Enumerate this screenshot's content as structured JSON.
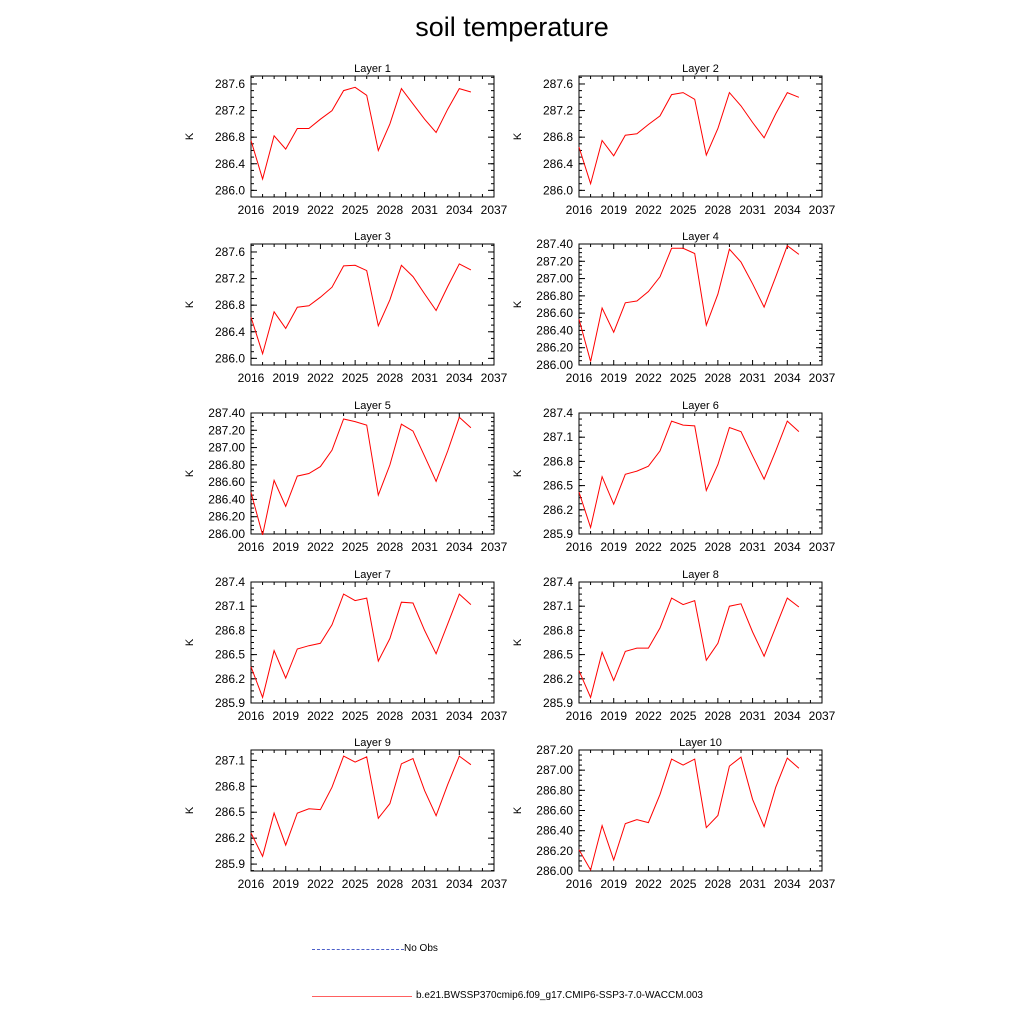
{
  "title": "soil temperature",
  "legend": {
    "obs_label": "No Obs",
    "obs_color": "#4b5fc9",
    "model_label": "b.e21.BWSSP370cmip6.f09_g17.CMIP6-SSP3-7.0-WACCM.003",
    "model_color": "#ff0000"
  },
  "chart_data": [
    {
      "type": "line",
      "title": "Layer 1",
      "ylabel": "K",
      "xlim": [
        2016,
        2037
      ],
      "xticks": [
        "2016",
        "2019",
        "2022",
        "2025",
        "2028",
        "2031",
        "2034",
        "2037"
      ],
      "ylim": [
        285.9,
        287.72
      ],
      "yticks": [
        "286.0",
        "286.4",
        "286.8",
        "287.2",
        "287.6"
      ],
      "ytick_values": [
        286.0,
        286.4,
        286.8,
        287.2,
        287.6
      ],
      "grid": false,
      "series": [
        {
          "color": "#ff0000",
          "x": [
            2016,
            2017,
            2018,
            2019,
            2020,
            2021,
            2022,
            2023,
            2024,
            2025,
            2026,
            2027,
            2028,
            2029,
            2030,
            2031,
            2032,
            2033,
            2034,
            2035
          ],
          "values": [
            286.75,
            286.17,
            286.82,
            286.62,
            286.93,
            286.93,
            287.07,
            287.2,
            287.5,
            287.55,
            287.43,
            286.6,
            287.0,
            287.53,
            287.3,
            287.07,
            286.87,
            287.22,
            287.53,
            287.48
          ]
        }
      ]
    },
    {
      "type": "line",
      "title": "Layer 2",
      "ylabel": "K",
      "xlim": [
        2016,
        2037
      ],
      "xticks": [
        "2016",
        "2019",
        "2022",
        "2025",
        "2028",
        "2031",
        "2034",
        "2037"
      ],
      "ylim": [
        285.9,
        287.72
      ],
      "yticks": [
        "286.0",
        "286.4",
        "286.8",
        "287.2",
        "287.6"
      ],
      "ytick_values": [
        286.0,
        286.4,
        286.8,
        287.2,
        287.6
      ],
      "grid": false,
      "series": [
        {
          "color": "#ff0000",
          "x": [
            2016,
            2017,
            2018,
            2019,
            2020,
            2021,
            2022,
            2023,
            2024,
            2025,
            2026,
            2027,
            2028,
            2029,
            2030,
            2031,
            2032,
            2033,
            2034,
            2035
          ],
          "values": [
            286.65,
            286.1,
            286.75,
            286.52,
            286.83,
            286.85,
            286.99,
            287.12,
            287.44,
            287.47,
            287.37,
            286.53,
            286.93,
            287.47,
            287.27,
            287.02,
            286.79,
            287.15,
            287.47,
            287.4
          ]
        }
      ]
    },
    {
      "type": "line",
      "title": "Layer 3",
      "ylabel": "K",
      "xlim": [
        2016,
        2037
      ],
      "xticks": [
        "2016",
        "2019",
        "2022",
        "2025",
        "2028",
        "2031",
        "2034",
        "2037"
      ],
      "ylim": [
        285.9,
        287.72
      ],
      "yticks": [
        "286.0",
        "286.4",
        "286.8",
        "287.2",
        "287.6"
      ],
      "ytick_values": [
        286.0,
        286.4,
        286.8,
        287.2,
        287.6
      ],
      "grid": false,
      "series": [
        {
          "color": "#ff0000",
          "x": [
            2016,
            2017,
            2018,
            2019,
            2020,
            2021,
            2022,
            2023,
            2024,
            2025,
            2026,
            2027,
            2028,
            2029,
            2030,
            2031,
            2032,
            2033,
            2034,
            2035
          ],
          "values": [
            286.62,
            286.07,
            286.7,
            286.45,
            286.77,
            286.79,
            286.92,
            287.07,
            287.39,
            287.4,
            287.32,
            286.49,
            286.88,
            287.4,
            287.23,
            286.97,
            286.72,
            287.08,
            287.42,
            287.33
          ]
        }
      ]
    },
    {
      "type": "line",
      "title": "Layer 4",
      "ylabel": "K",
      "xlim": [
        2016,
        2037
      ],
      "xticks": [
        "2016",
        "2019",
        "2022",
        "2025",
        "2028",
        "2031",
        "2034",
        "2037"
      ],
      "ylim": [
        286.0,
        287.4
      ],
      "yticks": [
        "286.00",
        "286.20",
        "286.40",
        "286.60",
        "286.80",
        "287.00",
        "287.20",
        "287.40"
      ],
      "ytick_values": [
        286.0,
        286.2,
        286.4,
        286.6,
        286.8,
        287.0,
        287.2,
        287.4
      ],
      "grid": false,
      "series": [
        {
          "color": "#ff0000",
          "x": [
            2016,
            2017,
            2018,
            2019,
            2020,
            2021,
            2022,
            2023,
            2024,
            2025,
            2026,
            2027,
            2028,
            2029,
            2030,
            2031,
            2032,
            2033,
            2034,
            2035
          ],
          "values": [
            286.53,
            286.04,
            286.66,
            286.38,
            286.72,
            286.74,
            286.85,
            287.02,
            287.35,
            287.35,
            287.29,
            286.46,
            286.82,
            287.34,
            287.19,
            286.94,
            286.67,
            287.02,
            287.38,
            287.28
          ]
        }
      ]
    },
    {
      "type": "line",
      "title": "Layer 5",
      "ylabel": "K",
      "xlim": [
        2016,
        2037
      ],
      "xticks": [
        "2016",
        "2019",
        "2022",
        "2025",
        "2028",
        "2031",
        "2034",
        "2037"
      ],
      "ylim": [
        286.0,
        287.4
      ],
      "yticks": [
        "286.00",
        "286.20",
        "286.40",
        "286.60",
        "286.80",
        "287.00",
        "287.20",
        "287.40"
      ],
      "ytick_values": [
        286.0,
        286.2,
        286.4,
        286.6,
        286.8,
        287.0,
        287.2,
        287.4
      ],
      "grid": false,
      "series": [
        {
          "color": "#ff0000",
          "x": [
            2016,
            2017,
            2018,
            2019,
            2020,
            2021,
            2022,
            2023,
            2024,
            2025,
            2026,
            2027,
            2028,
            2029,
            2030,
            2031,
            2032,
            2033,
            2034,
            2035
          ],
          "values": [
            286.48,
            285.99,
            286.62,
            286.32,
            286.67,
            286.7,
            286.78,
            286.97,
            287.33,
            287.3,
            287.26,
            286.45,
            286.8,
            287.27,
            287.19,
            286.9,
            286.61,
            286.96,
            287.35,
            287.23
          ]
        }
      ]
    },
    {
      "type": "line",
      "title": "Layer 6",
      "ylabel": "K",
      "xlim": [
        2016,
        2037
      ],
      "xticks": [
        "2016",
        "2019",
        "2022",
        "2025",
        "2028",
        "2031",
        "2034",
        "2037"
      ],
      "ylim": [
        285.9,
        287.4
      ],
      "yticks": [
        "285.9",
        "286.2",
        "286.5",
        "286.8",
        "287.1",
        "287.4"
      ],
      "ytick_values": [
        285.9,
        286.2,
        286.5,
        286.8,
        287.1,
        287.4
      ],
      "grid": false,
      "series": [
        {
          "color": "#ff0000",
          "x": [
            2016,
            2017,
            2018,
            2019,
            2020,
            2021,
            2022,
            2023,
            2024,
            2025,
            2026,
            2027,
            2028,
            2029,
            2030,
            2031,
            2032,
            2033,
            2034,
            2035
          ],
          "values": [
            286.42,
            285.98,
            286.61,
            286.27,
            286.64,
            286.68,
            286.74,
            286.93,
            287.3,
            287.25,
            287.24,
            286.44,
            286.76,
            287.22,
            287.17,
            286.87,
            286.58,
            286.93,
            287.3,
            287.17
          ]
        }
      ]
    },
    {
      "type": "line",
      "title": "Layer 7",
      "ylabel": "K",
      "xlim": [
        2016,
        2037
      ],
      "xticks": [
        "2016",
        "2019",
        "2022",
        "2025",
        "2028",
        "2031",
        "2034",
        "2037"
      ],
      "ylim": [
        285.9,
        287.4
      ],
      "yticks": [
        "285.9",
        "286.2",
        "286.5",
        "286.8",
        "287.1",
        "287.4"
      ],
      "ytick_values": [
        285.9,
        286.2,
        286.5,
        286.8,
        287.1,
        287.4
      ],
      "grid": false,
      "series": [
        {
          "color": "#ff0000",
          "x": [
            2016,
            2017,
            2018,
            2019,
            2020,
            2021,
            2022,
            2023,
            2024,
            2025,
            2026,
            2027,
            2028,
            2029,
            2030,
            2031,
            2032,
            2033,
            2034,
            2035
          ],
          "values": [
            286.35,
            285.97,
            286.55,
            286.21,
            286.57,
            286.61,
            286.64,
            286.87,
            287.25,
            287.17,
            287.2,
            286.42,
            286.7,
            287.15,
            287.14,
            286.8,
            286.51,
            286.88,
            287.25,
            287.12
          ]
        }
      ]
    },
    {
      "type": "line",
      "title": "Layer 8",
      "ylabel": "K",
      "xlim": [
        2016,
        2037
      ],
      "xticks": [
        "2016",
        "2019",
        "2022",
        "2025",
        "2028",
        "2031",
        "2034",
        "2037"
      ],
      "ylim": [
        285.9,
        287.4
      ],
      "yticks": [
        "285.9",
        "286.2",
        "286.5",
        "286.8",
        "287.1",
        "287.4"
      ],
      "ytick_values": [
        285.9,
        286.2,
        286.5,
        286.8,
        287.1,
        287.4
      ],
      "grid": false,
      "series": [
        {
          "color": "#ff0000",
          "x": [
            2016,
            2017,
            2018,
            2019,
            2020,
            2021,
            2022,
            2023,
            2024,
            2025,
            2026,
            2027,
            2028,
            2029,
            2030,
            2031,
            2032,
            2033,
            2034,
            2035
          ],
          "values": [
            286.3,
            285.97,
            286.53,
            286.18,
            286.54,
            286.58,
            286.58,
            286.83,
            287.2,
            287.12,
            287.17,
            286.43,
            286.64,
            287.1,
            287.13,
            286.78,
            286.48,
            286.84,
            287.2,
            287.09
          ]
        }
      ]
    },
    {
      "type": "line",
      "title": "Layer 9",
      "ylabel": "K",
      "xlim": [
        2016,
        2037
      ],
      "xticks": [
        "2016",
        "2019",
        "2022",
        "2025",
        "2028",
        "2031",
        "2034",
        "2037"
      ],
      "ylim": [
        285.82,
        287.22
      ],
      "yticks": [
        "285.9",
        "286.2",
        "286.5",
        "286.8",
        "287.1"
      ],
      "ytick_values": [
        285.9,
        286.2,
        286.5,
        286.8,
        287.1
      ],
      "grid": false,
      "series": [
        {
          "color": "#ff0000",
          "x": [
            2016,
            2017,
            2018,
            2019,
            2020,
            2021,
            2022,
            2023,
            2024,
            2025,
            2026,
            2027,
            2028,
            2029,
            2030,
            2031,
            2032,
            2033,
            2034,
            2035
          ],
          "values": [
            286.26,
            285.99,
            286.49,
            286.12,
            286.49,
            286.54,
            286.53,
            286.79,
            287.15,
            287.08,
            287.14,
            286.43,
            286.6,
            287.06,
            287.12,
            286.75,
            286.46,
            286.82,
            287.15,
            287.05
          ]
        }
      ]
    },
    {
      "type": "line",
      "title": "Layer 10",
      "ylabel": "K",
      "xlim": [
        2016,
        2037
      ],
      "xticks": [
        "2016",
        "2019",
        "2022",
        "2025",
        "2028",
        "2031",
        "2034",
        "2037"
      ],
      "ylim": [
        286.0,
        287.2
      ],
      "yticks": [
        "286.00",
        "286.20",
        "286.40",
        "286.60",
        "286.80",
        "287.00",
        "287.20"
      ],
      "ytick_values": [
        286.0,
        286.2,
        286.4,
        286.6,
        286.8,
        287.0,
        287.2
      ],
      "grid": false,
      "series": [
        {
          "color": "#ff0000",
          "x": [
            2016,
            2017,
            2018,
            2019,
            2020,
            2021,
            2022,
            2023,
            2024,
            2025,
            2026,
            2027,
            2028,
            2029,
            2030,
            2031,
            2032,
            2033,
            2034,
            2035
          ],
          "values": [
            286.21,
            286.01,
            286.45,
            286.11,
            286.47,
            286.51,
            286.48,
            286.76,
            287.11,
            287.05,
            287.11,
            286.43,
            286.55,
            287.04,
            287.13,
            286.71,
            286.44,
            286.83,
            287.12,
            287.02
          ]
        }
      ]
    }
  ]
}
